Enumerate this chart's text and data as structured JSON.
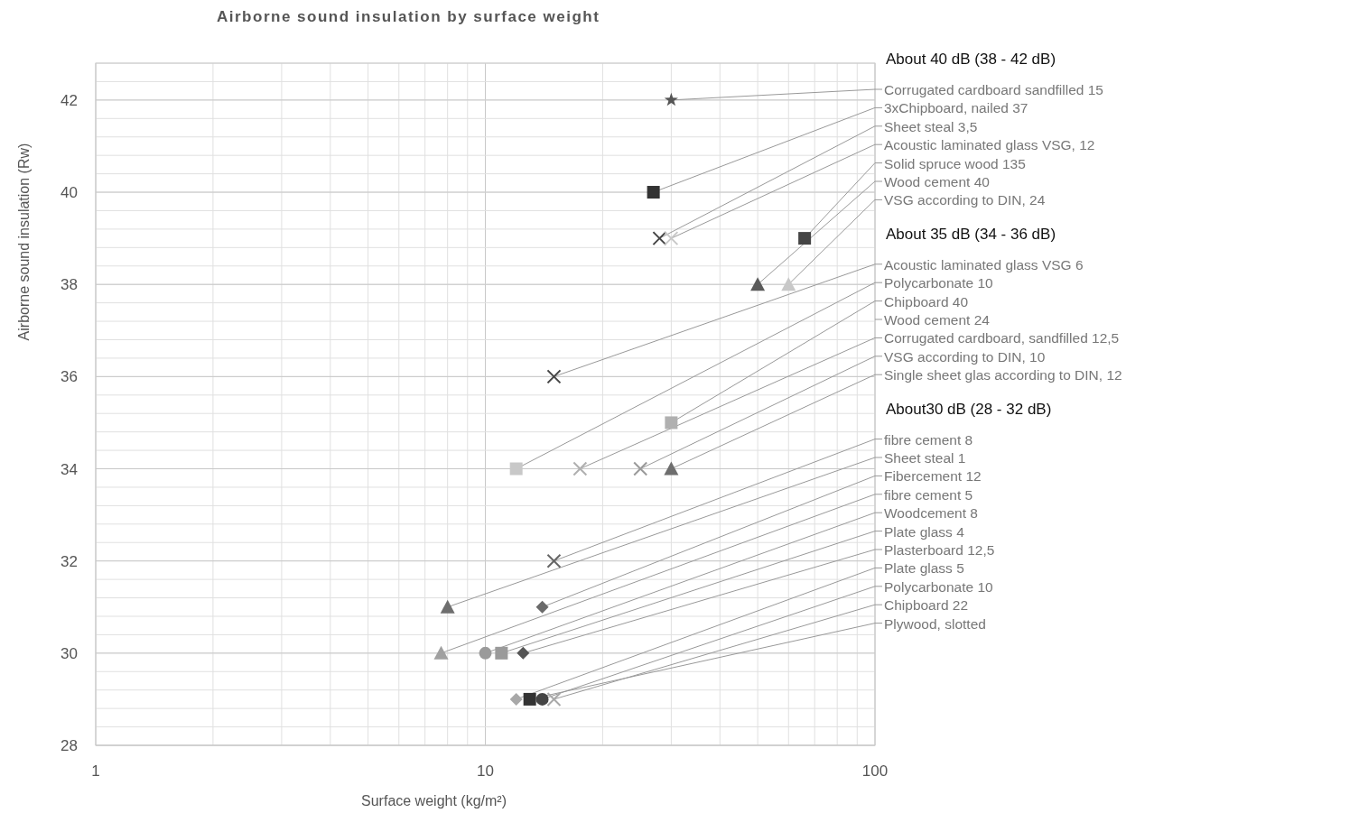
{
  "chart_data": {
    "type": "scatter",
    "title": "Airborne sound insulation by surface weight",
    "xlabel": "Surface weight (kg/m²)",
    "ylabel": "Airborne sound insulation (Rw)",
    "log": "x",
    "grid": true,
    "legend": "right",
    "xlim": [
      1,
      100
    ],
    "xticks": [
      1,
      10,
      100
    ],
    "ylim": [
      28,
      42.8
    ],
    "yticks": [
      28,
      30,
      32,
      34,
      36,
      38,
      40,
      42
    ],
    "annotations": [
      "About 40 dB (38 - 42 dB)",
      "About 35 dB (34 - 36 dB)",
      "About30 dB (28 - 32 dB)"
    ],
    "series": [
      {
        "name": "Corrugated cardboard sandfilled 15",
        "color": "#555555",
        "marker": "star",
        "x": [
          30
        ],
        "values": [
          42
        ]
      },
      {
        "name": "3xChipboard, nailed 37",
        "color": "#333333",
        "marker": "square",
        "x": [
          27
        ],
        "values": [
          40
        ]
      },
      {
        "name": "Sheet steal 3,5",
        "color": "#444444",
        "marker": "cross",
        "x": [
          28
        ],
        "values": [
          39
        ]
      },
      {
        "name": "Acoustic laminated glass VSG, 12",
        "color": "#c8c8c8",
        "marker": "cross",
        "x": [
          30
        ],
        "values": [
          39
        ]
      },
      {
        "name": "Solid spruce wood 135",
        "color": "#444444",
        "marker": "square",
        "x": [
          66
        ],
        "values": [
          39
        ]
      },
      {
        "name": "Wood cement 40",
        "color": "#5a5a5a",
        "marker": "triangle",
        "x": [
          50
        ],
        "values": [
          38
        ]
      },
      {
        "name": "VSG according to DIN, 24",
        "color": "#c8c8c8",
        "marker": "triangle",
        "x": [
          60
        ],
        "values": [
          38
        ]
      },
      {
        "name": "Acoustic laminated glass VSG 6",
        "color": "#444444",
        "marker": "cross",
        "x": [
          15
        ],
        "values": [
          36
        ]
      },
      {
        "name": "Polycarbonate 10",
        "color": "#c8c8c8",
        "marker": "square",
        "x": [
          12
        ],
        "values": [
          34
        ]
      },
      {
        "name": "Chipboard 40",
        "color": "#b0b0b0",
        "marker": "square",
        "x": [
          30
        ],
        "values": [
          35
        ]
      },
      {
        "name": "Wood cement 24",
        "x": [
          null
        ],
        "values": [
          null
        ]
      },
      {
        "name": "Corrugated cardboard, sandfilled 12,5",
        "color": "#b0b0b0",
        "marker": "cross",
        "x": [
          17.5
        ],
        "values": [
          34
        ]
      },
      {
        "name": "VSG according to DIN, 10",
        "color": "#9a9a9a",
        "marker": "cross",
        "x": [
          25
        ],
        "values": [
          34
        ]
      },
      {
        "name": "Single sheet glas according to DIN, 12",
        "color": "#6e6e6e",
        "marker": "triangle",
        "x": [
          30
        ],
        "values": [
          34
        ]
      },
      {
        "name": "fibre cement 8",
        "color": "#666666",
        "marker": "cross",
        "x": [
          15
        ],
        "values": [
          32
        ]
      },
      {
        "name": "Sheet steal 1",
        "color": "#6e6e6e",
        "marker": "triangle",
        "x": [
          8
        ],
        "values": [
          31
        ]
      },
      {
        "name": "Fibercement 12",
        "color": "#6a6a6a",
        "marker": "diamond",
        "x": [
          14
        ],
        "values": [
          31
        ]
      },
      {
        "name": "fibre cement 5",
        "color": "#a0a0a0",
        "marker": "triangle",
        "x": [
          7.7
        ],
        "values": [
          30
        ]
      },
      {
        "name": "Woodcement 8",
        "color": "#9a9a9a",
        "marker": "circle",
        "x": [
          10
        ],
        "values": [
          30
        ]
      },
      {
        "name": "Plate glass 4",
        "color": "#9a9a9a",
        "marker": "square",
        "x": [
          11
        ],
        "values": [
          30
        ]
      },
      {
        "name": "Plasterboard 12,5",
        "color": "#555555",
        "marker": "diamond",
        "x": [
          12.5
        ],
        "values": [
          30
        ]
      },
      {
        "name": "Plate glass 5",
        "color": "#a8a8a8",
        "marker": "diamond",
        "x": [
          12
        ],
        "values": [
          29
        ]
      },
      {
        "name": "Polycarbonate 10",
        "color": "#444444",
        "marker": "circle",
        "x": [
          14
        ],
        "values": [
          29
        ]
      },
      {
        "name": "Chipboard 22",
        "color": "#a8a8a8",
        "marker": "cross",
        "x": [
          15
        ],
        "values": [
          29
        ]
      },
      {
        "name": "Plywood, slotted",
        "color": "#333333",
        "marker": "square",
        "x": [
          13
        ],
        "values": [
          29
        ]
      }
    ]
  }
}
